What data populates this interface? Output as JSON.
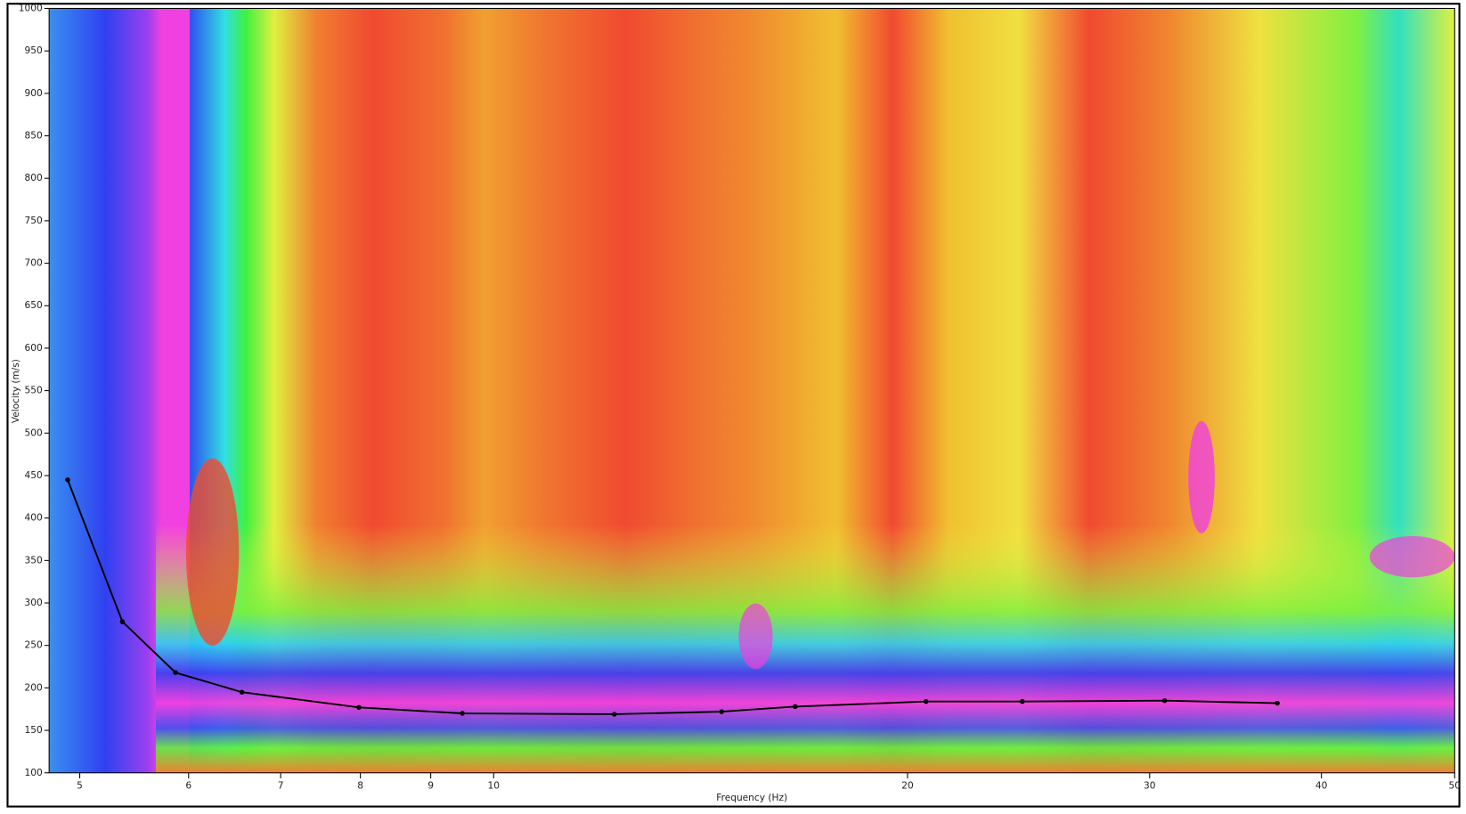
{
  "chart_data": {
    "type": "line",
    "x_label": "Frequency (Hz)",
    "y_label": "Velocity (m/s)",
    "xscale": "log",
    "x": [
      4.9,
      5.37,
      5.87,
      6.56,
      7.98,
      9.49,
      12.24,
      14.65,
      16.57,
      20.63,
      24.24,
      30.76,
      37.15
    ],
    "series": [
      {
        "color": "#000000",
        "values": [
          445,
          278,
          218,
          195,
          177,
          170,
          169,
          172,
          178,
          184,
          184,
          185,
          182
        ]
      }
    ],
    "xlim": [
      4.75,
      50
    ],
    "ylim": [
      100,
      1000
    ],
    "xticks": [
      5,
      6,
      7,
      8,
      9,
      10,
      20,
      30,
      40,
      50
    ],
    "yticks": [
      100,
      150,
      200,
      250,
      300,
      350,
      400,
      450,
      500,
      550,
      600,
      650,
      700,
      750,
      800,
      850,
      900,
      950,
      1000
    ]
  }
}
